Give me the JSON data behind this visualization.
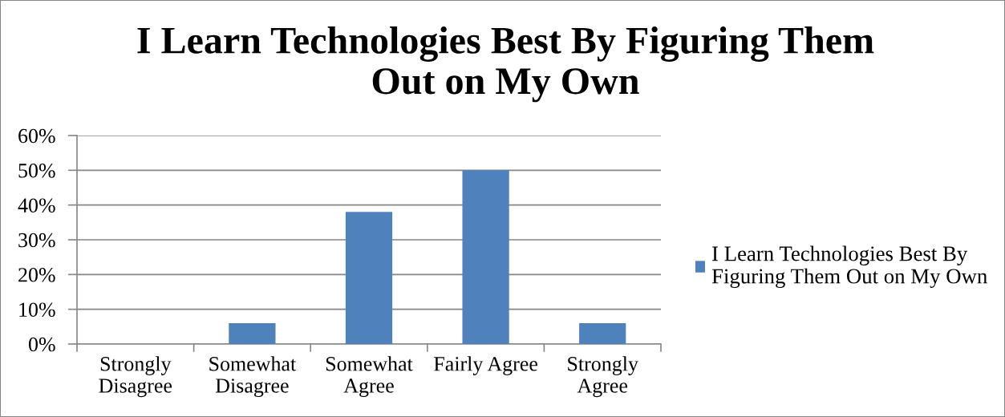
{
  "chart_data": {
    "type": "bar",
    "title": "I Learn Technologies Best By Figuring Them\nOut on My Own",
    "categories": [
      "Strongly\nDisagree",
      "Somewhat\nDisagree",
      "Somewhat\nAgree",
      "Fairly Agree",
      "Strongly\nAgree"
    ],
    "series": [
      {
        "name": "I Learn Technologies Best By\nFiguring Them Out on My Own",
        "color": "#4f81bd",
        "values": [
          0,
          6,
          38,
          50,
          6
        ]
      }
    ],
    "ylim": [
      0,
      60
    ],
    "yticks": [
      {
        "value": 0,
        "label": "0%"
      },
      {
        "value": 10,
        "label": "10%"
      },
      {
        "value": 20,
        "label": "20%"
      },
      {
        "value": 30,
        "label": "30%"
      },
      {
        "value": 40,
        "label": "40%"
      },
      {
        "value": 50,
        "label": "50%"
      },
      {
        "value": 60,
        "label": "60%"
      }
    ],
    "grid": "y",
    "legend": "right"
  }
}
